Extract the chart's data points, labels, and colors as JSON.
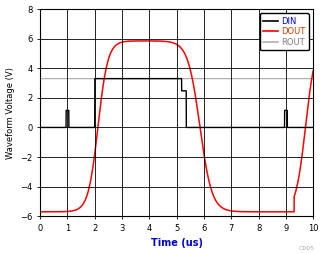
{
  "title": "",
  "xlabel": "Time (us)",
  "ylabel": "Waveform Voltage (V)",
  "xlim": [
    0,
    10
  ],
  "ylim": [
    -6,
    8
  ],
  "yticks": [
    -6,
    -4,
    -2,
    0,
    2,
    4,
    6,
    8
  ],
  "xticks": [
    0,
    1,
    2,
    3,
    4,
    5,
    6,
    7,
    8,
    9,
    10
  ],
  "din_color": "#000000",
  "dout_color": "#ff0000",
  "rout_color": "#b0b0b0",
  "legend_labels": [
    "DIN",
    "DOUT",
    "ROUT"
  ],
  "legend_text_colors": [
    "#0000dd",
    "#cc4400",
    "#808080"
  ],
  "background_color": "#ffffff",
  "grid_color": "#000000",
  "watermark": "C005",
  "din_low": 0.0,
  "din_high": 3.3,
  "dout_low": -5.7,
  "dout_high": 5.85,
  "rout_level": 3.3
}
